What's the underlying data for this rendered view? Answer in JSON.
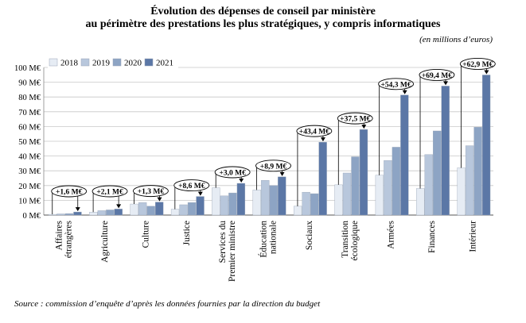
{
  "title_line1": "Évolution des dépenses de conseil par ministère",
  "title_line2": "au périmètre des prestations les plus stratégiques, y compris informatiques",
  "unit_note": "(en millions d’euros)",
  "source": "Source : commission d’enquête d’après les données fournies par la direction du budget",
  "chart_data": {
    "type": "bar",
    "categories": [
      [
        "Affaires",
        "étrangères"
      ],
      [
        "Agriculture"
      ],
      [
        "Culture"
      ],
      [
        "Justice"
      ],
      [
        "Services du",
        "Premier ministre"
      ],
      [
        "Éducation",
        "nationale"
      ],
      [
        "Sociaux"
      ],
      [
        "Transition",
        "écologique"
      ],
      [
        "Armées"
      ],
      [
        "Finances"
      ],
      [
        "Intérieur"
      ]
    ],
    "series": [
      {
        "name": "2018",
        "color": "#e6ecf4",
        "values": [
          0.5,
          2.0,
          7.5,
          4.0,
          18.5,
          17.0,
          6.0,
          20.5,
          27.0,
          18.0,
          32.0
        ]
      },
      {
        "name": "2019",
        "color": "#b8c7dc",
        "values": [
          0.8,
          3.0,
          8.5,
          7.0,
          13.0,
          23.5,
          15.5,
          28.5,
          37.0,
          41.0,
          47.0
        ]
      },
      {
        "name": "2020",
        "color": "#8da4c4",
        "values": [
          1.0,
          3.5,
          6.0,
          8.5,
          15.0,
          20.0,
          14.5,
          39.5,
          46.0,
          57.0,
          59.5
        ]
      },
      {
        "name": "2021",
        "color": "#5b77a6",
        "values": [
          2.1,
          4.1,
          8.8,
          12.6,
          21.5,
          25.9,
          49.4,
          58.0,
          81.3,
          87.4,
          94.9
        ]
      }
    ],
    "annotations": [
      "+1,6 M€",
      "+2,1 M€",
      "+1,3 M€",
      "+8,6 M€",
      "+3,0 M€",
      "+8,9 M€",
      "+43,4 M€",
      "+37,5 M€",
      "+54,3 M€",
      "+69,4 M€",
      "+62,9 M€"
    ],
    "ylim": [
      0,
      100
    ],
    "yticks": [
      0,
      10,
      20,
      30,
      40,
      50,
      60,
      70,
      80,
      90,
      100
    ],
    "ytick_labels": [
      "0 M€",
      "10 M€",
      "20 M€",
      "30 M€",
      "40 M€",
      "50 M€",
      "60 M€",
      "70 M€",
      "80 M€",
      "90 M€",
      "100 M€"
    ],
    "legend_position": "top-left",
    "grid": true
  }
}
